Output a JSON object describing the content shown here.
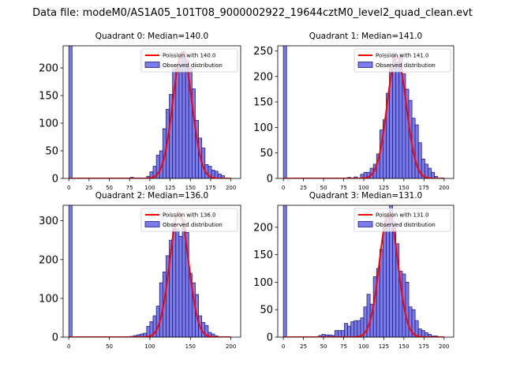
{
  "suptitle": "Data file: modeM0/AS1A05_101T08_9000002922_19644cztM0_level2_quad_clean.evt",
  "colors": {
    "bar_fill": "#7b7bea",
    "bar_edge": "#1f1f7a",
    "curve": "#ff0000",
    "axes": "#000000"
  },
  "chart_data": [
    {
      "type": "bar",
      "title": "Quadrant 0: Median=140.0",
      "xlim": [
        -7,
        212
      ],
      "ylim": [
        0,
        240
      ],
      "xticks": [
        0,
        25,
        50,
        75,
        100,
        125,
        150,
        175,
        200
      ],
      "yticks": [
        0,
        50,
        100,
        150,
        200
      ],
      "bin_width": 4,
      "legend": {
        "position": "top-right",
        "curve_label": "Poission with 140.0",
        "bars_label": "Observed distribution"
      },
      "bins": [
        [
          0,
          500
        ],
        [
          76,
          2
        ],
        [
          84,
          1
        ],
        [
          96,
          4
        ],
        [
          100,
          12
        ],
        [
          104,
          22
        ],
        [
          108,
          42
        ],
        [
          112,
          50
        ],
        [
          116,
          90
        ],
        [
          120,
          125
        ],
        [
          124,
          152
        ],
        [
          128,
          198
        ],
        [
          132,
          205
        ],
        [
          136,
          218
        ],
        [
          140,
          230
        ],
        [
          144,
          214
        ],
        [
          148,
          200
        ],
        [
          152,
          162
        ],
        [
          156,
          105
        ],
        [
          160,
          73
        ],
        [
          164,
          55
        ],
        [
          168,
          25
        ],
        [
          172,
          22
        ],
        [
          176,
          15
        ],
        [
          180,
          13
        ],
        [
          184,
          8
        ],
        [
          188,
          5
        ]
      ],
      "poisson_mean": 140.0,
      "poisson_peak": 228
    },
    {
      "type": "bar",
      "title": "Quadrant 1: Median=141.0",
      "xlim": [
        -7,
        212
      ],
      "ylim": [
        0,
        260
      ],
      "xticks": [
        0,
        25,
        50,
        75,
        100,
        125,
        150,
        175,
        200
      ],
      "yticks": [
        0,
        50,
        100,
        150,
        200,
        250
      ],
      "bin_width": 4,
      "legend": {
        "position": "top-right",
        "curve_label": "Poission with 141.0",
        "bars_label": "Observed distribution"
      },
      "bins": [
        [
          0,
          500
        ],
        [
          80,
          2
        ],
        [
          88,
          3
        ],
        [
          96,
          8
        ],
        [
          100,
          12
        ],
        [
          104,
          12
        ],
        [
          108,
          20
        ],
        [
          112,
          28
        ],
        [
          116,
          48
        ],
        [
          120,
          95
        ],
        [
          124,
          115
        ],
        [
          128,
          167
        ],
        [
          132,
          222
        ],
        [
          136,
          245
        ],
        [
          140,
          228
        ],
        [
          144,
          243
        ],
        [
          148,
          205
        ],
        [
          152,
          175
        ],
        [
          156,
          153
        ],
        [
          160,
          118
        ],
        [
          164,
          105
        ],
        [
          168,
          70
        ],
        [
          172,
          38
        ],
        [
          176,
          28
        ],
        [
          180,
          20
        ],
        [
          184,
          12
        ],
        [
          188,
          4
        ]
      ],
      "poisson_mean": 141.0,
      "poisson_peak": 240
    },
    {
      "type": "bar",
      "title": "Quadrant 2: Median=136.0",
      "xlim": [
        -7,
        212
      ],
      "ylim": [
        0,
        340
      ],
      "xticks": [
        0,
        50,
        100,
        150,
        200
      ],
      "yticks": [
        0,
        100,
        200,
        300
      ],
      "bin_width": 4,
      "legend": {
        "position": "top-right",
        "curve_label": "Poission with 136.0",
        "bars_label": "Observed distribution"
      },
      "bins": [
        [
          0,
          500
        ],
        [
          76,
          2
        ],
        [
          80,
          4
        ],
        [
          84,
          6
        ],
        [
          88,
          8
        ],
        [
          92,
          10
        ],
        [
          96,
          28
        ],
        [
          100,
          40
        ],
        [
          104,
          55
        ],
        [
          108,
          80
        ],
        [
          112,
          140
        ],
        [
          116,
          168
        ],
        [
          120,
          210
        ],
        [
          124,
          250
        ],
        [
          128,
          295
        ],
        [
          132,
          280
        ],
        [
          136,
          260
        ],
        [
          140,
          300
        ],
        [
          144,
          270
        ],
        [
          148,
          165
        ],
        [
          152,
          140
        ],
        [
          156,
          110
        ],
        [
          160,
          55
        ],
        [
          164,
          38
        ],
        [
          168,
          30
        ],
        [
          172,
          12
        ],
        [
          176,
          8
        ],
        [
          180,
          3
        ]
      ],
      "poisson_mean": 136.0,
      "poisson_peak": 322
    },
    {
      "type": "bar",
      "title": "Quadrant 3: Median=131.0",
      "xlim": [
        -7,
        212
      ],
      "ylim": [
        0,
        240
      ],
      "xticks": [
        0,
        25,
        50,
        75,
        100,
        125,
        150,
        175,
        200
      ],
      "yticks": [
        0,
        50,
        100,
        150,
        200
      ],
      "bin_width": 4,
      "legend": {
        "position": "top-right",
        "curve_label": "Poission with 131.0",
        "bars_label": "Observed distribution"
      },
      "bins": [
        [
          0,
          500
        ],
        [
          44,
          3
        ],
        [
          48,
          5
        ],
        [
          52,
          4
        ],
        [
          56,
          4
        ],
        [
          60,
          3
        ],
        [
          64,
          12
        ],
        [
          68,
          12
        ],
        [
          72,
          12
        ],
        [
          76,
          25
        ],
        [
          80,
          20
        ],
        [
          84,
          28
        ],
        [
          88,
          30
        ],
        [
          92,
          30
        ],
        [
          96,
          35
        ],
        [
          100,
          55
        ],
        [
          104,
          78
        ],
        [
          108,
          60
        ],
        [
          112,
          110
        ],
        [
          116,
          125
        ],
        [
          120,
          160
        ],
        [
          124,
          200
        ],
        [
          128,
          220
        ],
        [
          132,
          245
        ],
        [
          136,
          210
        ],
        [
          140,
          170
        ],
        [
          144,
          120
        ],
        [
          148,
          115
        ],
        [
          152,
          100
        ],
        [
          156,
          55
        ],
        [
          160,
          50
        ],
        [
          164,
          30
        ],
        [
          168,
          15
        ],
        [
          172,
          12
        ],
        [
          176,
          8
        ],
        [
          180,
          5
        ],
        [
          184,
          2
        ],
        [
          188,
          2
        ]
      ],
      "poisson_mean": 131.0,
      "poisson_peak": 226
    }
  ]
}
